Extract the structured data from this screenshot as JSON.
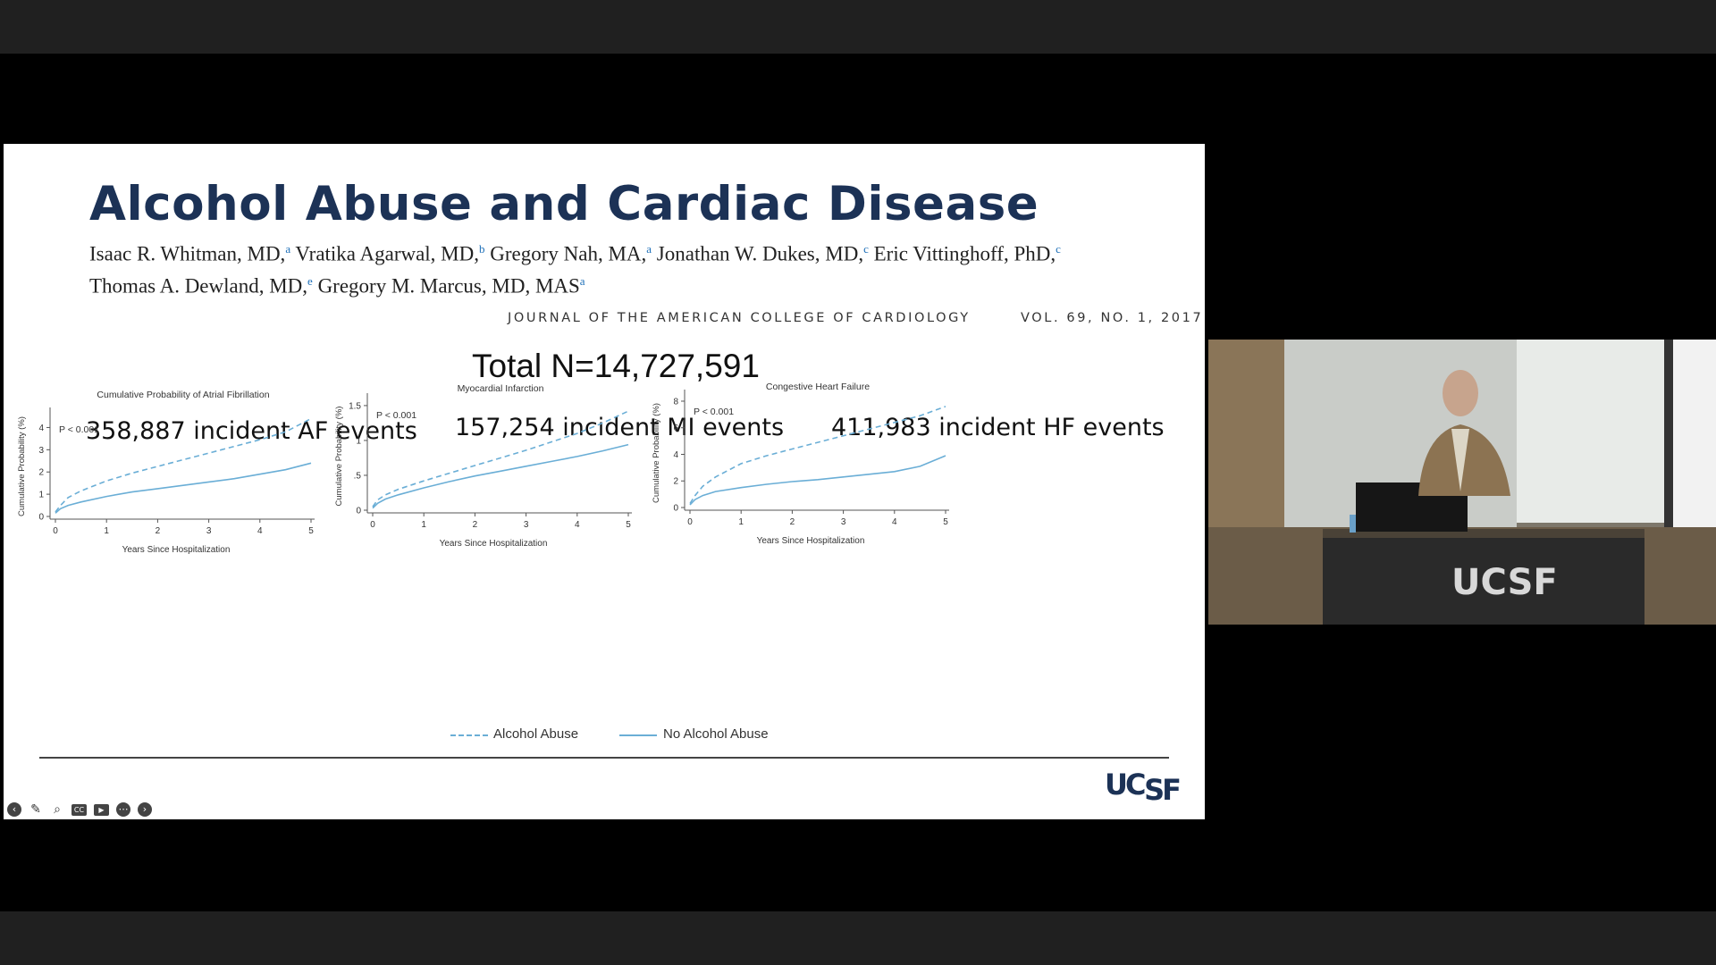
{
  "slide": {
    "title": "Alcohol Abuse and Cardiac Disease",
    "authors_line1": [
      {
        "name": "Isaac R. Whitman, MD,",
        "sup": "a"
      },
      {
        "name": " Vratika Agarwal, MD,",
        "sup": "b"
      },
      {
        "name": " Gregory Nah, MA,",
        "sup": "a"
      },
      {
        "name": " Jonathan W. Dukes, MD,",
        "sup": "c"
      },
      {
        "name": " Eric Vittinghoff, PhD,",
        "sup": "c"
      }
    ],
    "authors_line2": [
      {
        "name": "Thomas A. Dewland, MD,",
        "sup": "e"
      },
      {
        "name": " Gregory M. Marcus, MD, MAS",
        "sup": "a"
      }
    ],
    "journal": "JOURNAL OF THE AMERICAN COLLEGE OF CARDIOLOGY",
    "volume": "VOL. 69, NO. 1, 2017",
    "total": "Total N=14,727,591",
    "events": [
      "358,887 incident AF events",
      "157,254 incident MI events",
      "411,983 incident HF events"
    ],
    "legend": {
      "alcohol": "Alcohol Abuse",
      "no_alcohol": "No Alcohol Abuse"
    },
    "logo": {
      "uc": "UC",
      "sf": "SF"
    },
    "colors": {
      "title": "#1c3256",
      "curve": "#6aaed6",
      "author_sup": "#1d6fb8"
    }
  },
  "controls": [
    "back-icon",
    "pen-icon",
    "zoom-icon",
    "captions-icon",
    "video-off-icon",
    "more-icon",
    "forward-icon"
  ],
  "camera": {
    "podium_logo": "UCSF"
  },
  "chart_data": [
    {
      "type": "line",
      "title": "Cumulative Probability of Atrial Fibrillation",
      "xlabel": "Years Since Hospitalization",
      "ylabel": "Cumulative Probability (%)",
      "annotation": "P < 0.001",
      "xlim": [
        0,
        5
      ],
      "ylim": [
        0,
        4.5
      ],
      "xticks": [
        "0",
        "1",
        "2",
        "3",
        "4",
        "5"
      ],
      "yticks": [
        "0",
        "1",
        "2",
        "3",
        "4"
      ],
      "yticks_values": [
        0,
        1,
        2,
        3,
        4
      ],
      "x": [
        0,
        0.1,
        0.25,
        0.5,
        1,
        1.5,
        2,
        2.5,
        3,
        3.5,
        4,
        4.5,
        5
      ],
      "series": [
        {
          "name": "Alcohol Abuse",
          "style": "dashed",
          "values": [
            0.2,
            0.5,
            0.85,
            1.15,
            1.6,
            1.95,
            2.25,
            2.55,
            2.85,
            3.15,
            3.45,
            3.8,
            4.4
          ]
        },
        {
          "name": "No Alcohol Abuse",
          "style": "solid",
          "values": [
            0.15,
            0.35,
            0.5,
            0.65,
            0.9,
            1.1,
            1.25,
            1.4,
            1.55,
            1.7,
            1.9,
            2.1,
            2.4
          ]
        }
      ]
    },
    {
      "type": "line",
      "title": "Myocardial Infarction",
      "xlabel": "Years Since Hospitalization",
      "ylabel": "Cumulative Probability (%)",
      "annotation": "P < 0.001",
      "xlim": [
        0,
        5
      ],
      "ylim": [
        0,
        1.55
      ],
      "xticks": [
        "0",
        "1",
        "2",
        "3",
        "4",
        "5"
      ],
      "yticks": [
        "0",
        ".5",
        "1",
        "1.5"
      ],
      "yticks_values": [
        0,
        0.5,
        1,
        1.5
      ],
      "x": [
        0,
        0.1,
        0.25,
        0.5,
        1,
        1.5,
        2,
        2.5,
        3,
        3.5,
        4,
        4.5,
        5
      ],
      "series": [
        {
          "name": "Alcohol Abuse",
          "style": "dashed",
          "values": [
            0.05,
            0.15,
            0.22,
            0.3,
            0.42,
            0.53,
            0.64,
            0.75,
            0.86,
            0.98,
            1.1,
            1.25,
            1.42
          ]
        },
        {
          "name": "No Alcohol Abuse",
          "style": "solid",
          "values": [
            0.03,
            0.1,
            0.16,
            0.22,
            0.32,
            0.41,
            0.49,
            0.56,
            0.63,
            0.7,
            0.77,
            0.85,
            0.94
          ]
        }
      ]
    },
    {
      "type": "line",
      "title": "Congestive Heart Failure",
      "xlabel": "Years Since Hospitalization",
      "ylabel": "Cumulative Probability (%)",
      "annotation": "P < 0.001",
      "xlim": [
        0,
        5
      ],
      "ylim": [
        0,
        8.2
      ],
      "xticks": [
        "0",
        "1",
        "2",
        "3",
        "4",
        "5"
      ],
      "yticks": [
        "0",
        "2",
        "4",
        "6",
        "8"
      ],
      "yticks_values": [
        0,
        2,
        4,
        6,
        8
      ],
      "x": [
        0,
        0.1,
        0.25,
        0.5,
        1,
        1.5,
        2,
        2.5,
        3,
        3.5,
        4,
        4.5,
        5
      ],
      "series": [
        {
          "name": "Alcohol Abuse",
          "style": "dashed",
          "values": [
            0.3,
            0.9,
            1.6,
            2.3,
            3.3,
            3.9,
            4.4,
            4.9,
            5.4,
            5.9,
            6.4,
            6.9,
            7.6
          ]
        },
        {
          "name": "No Alcohol Abuse",
          "style": "solid",
          "values": [
            0.2,
            0.6,
            0.9,
            1.2,
            1.5,
            1.75,
            1.95,
            2.1,
            2.3,
            2.5,
            2.7,
            3.1,
            3.9
          ]
        }
      ]
    }
  ]
}
